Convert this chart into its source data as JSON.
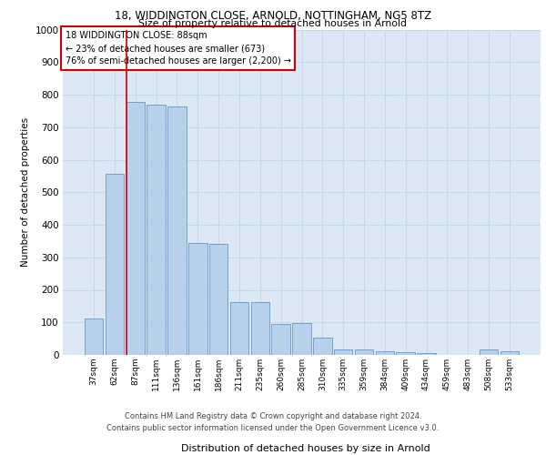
{
  "title1": "18, WIDDINGTON CLOSE, ARNOLD, NOTTINGHAM, NG5 8TZ",
  "title2": "Size of property relative to detached houses in Arnold",
  "xlabel": "Distribution of detached houses by size in Arnold",
  "ylabel": "Number of detached properties",
  "categories": [
    "37sqm",
    "62sqm",
    "87sqm",
    "111sqm",
    "136sqm",
    "161sqm",
    "186sqm",
    "211sqm",
    "235sqm",
    "260sqm",
    "285sqm",
    "310sqm",
    "335sqm",
    "359sqm",
    "384sqm",
    "409sqm",
    "434sqm",
    "459sqm",
    "483sqm",
    "508sqm",
    "533sqm"
  ],
  "values": [
    112,
    557,
    778,
    770,
    765,
    343,
    342,
    162,
    162,
    96,
    97,
    52,
    18,
    17,
    10,
    8,
    5,
    0,
    0,
    18,
    10
  ],
  "bar_color": "#b8d0ea",
  "bar_edge_color": "#6699cc",
  "vline_color": "#cc0000",
  "vline_pos": 2,
  "annotation_text": "18 WIDDINGTON CLOSE: 88sqm\n← 23% of detached houses are smaller (673)\n76% of semi-detached houses are larger (2,200) →",
  "annotation_box_color": "#ffffff",
  "annotation_box_edge": "#cc0000",
  "footer1": "Contains HM Land Registry data © Crown copyright and database right 2024.",
  "footer2": "Contains public sector information licensed under the Open Government Licence v3.0.",
  "ylim": [
    0,
    1000
  ],
  "yticks": [
    0,
    100,
    200,
    300,
    400,
    500,
    600,
    700,
    800,
    900,
    1000
  ],
  "bg_color": "#dce9f5",
  "fig_bg": "#ffffff",
  "grid_color": "#c5d8ee",
  "title1_fontsize": 8.5,
  "title2_fontsize": 7.8,
  "ylabel_fontsize": 7.5,
  "xlabel_fontsize": 8.0,
  "tick_fontsize": 6.5,
  "ann_fontsize": 7.0,
  "footer_fontsize": 6.0
}
